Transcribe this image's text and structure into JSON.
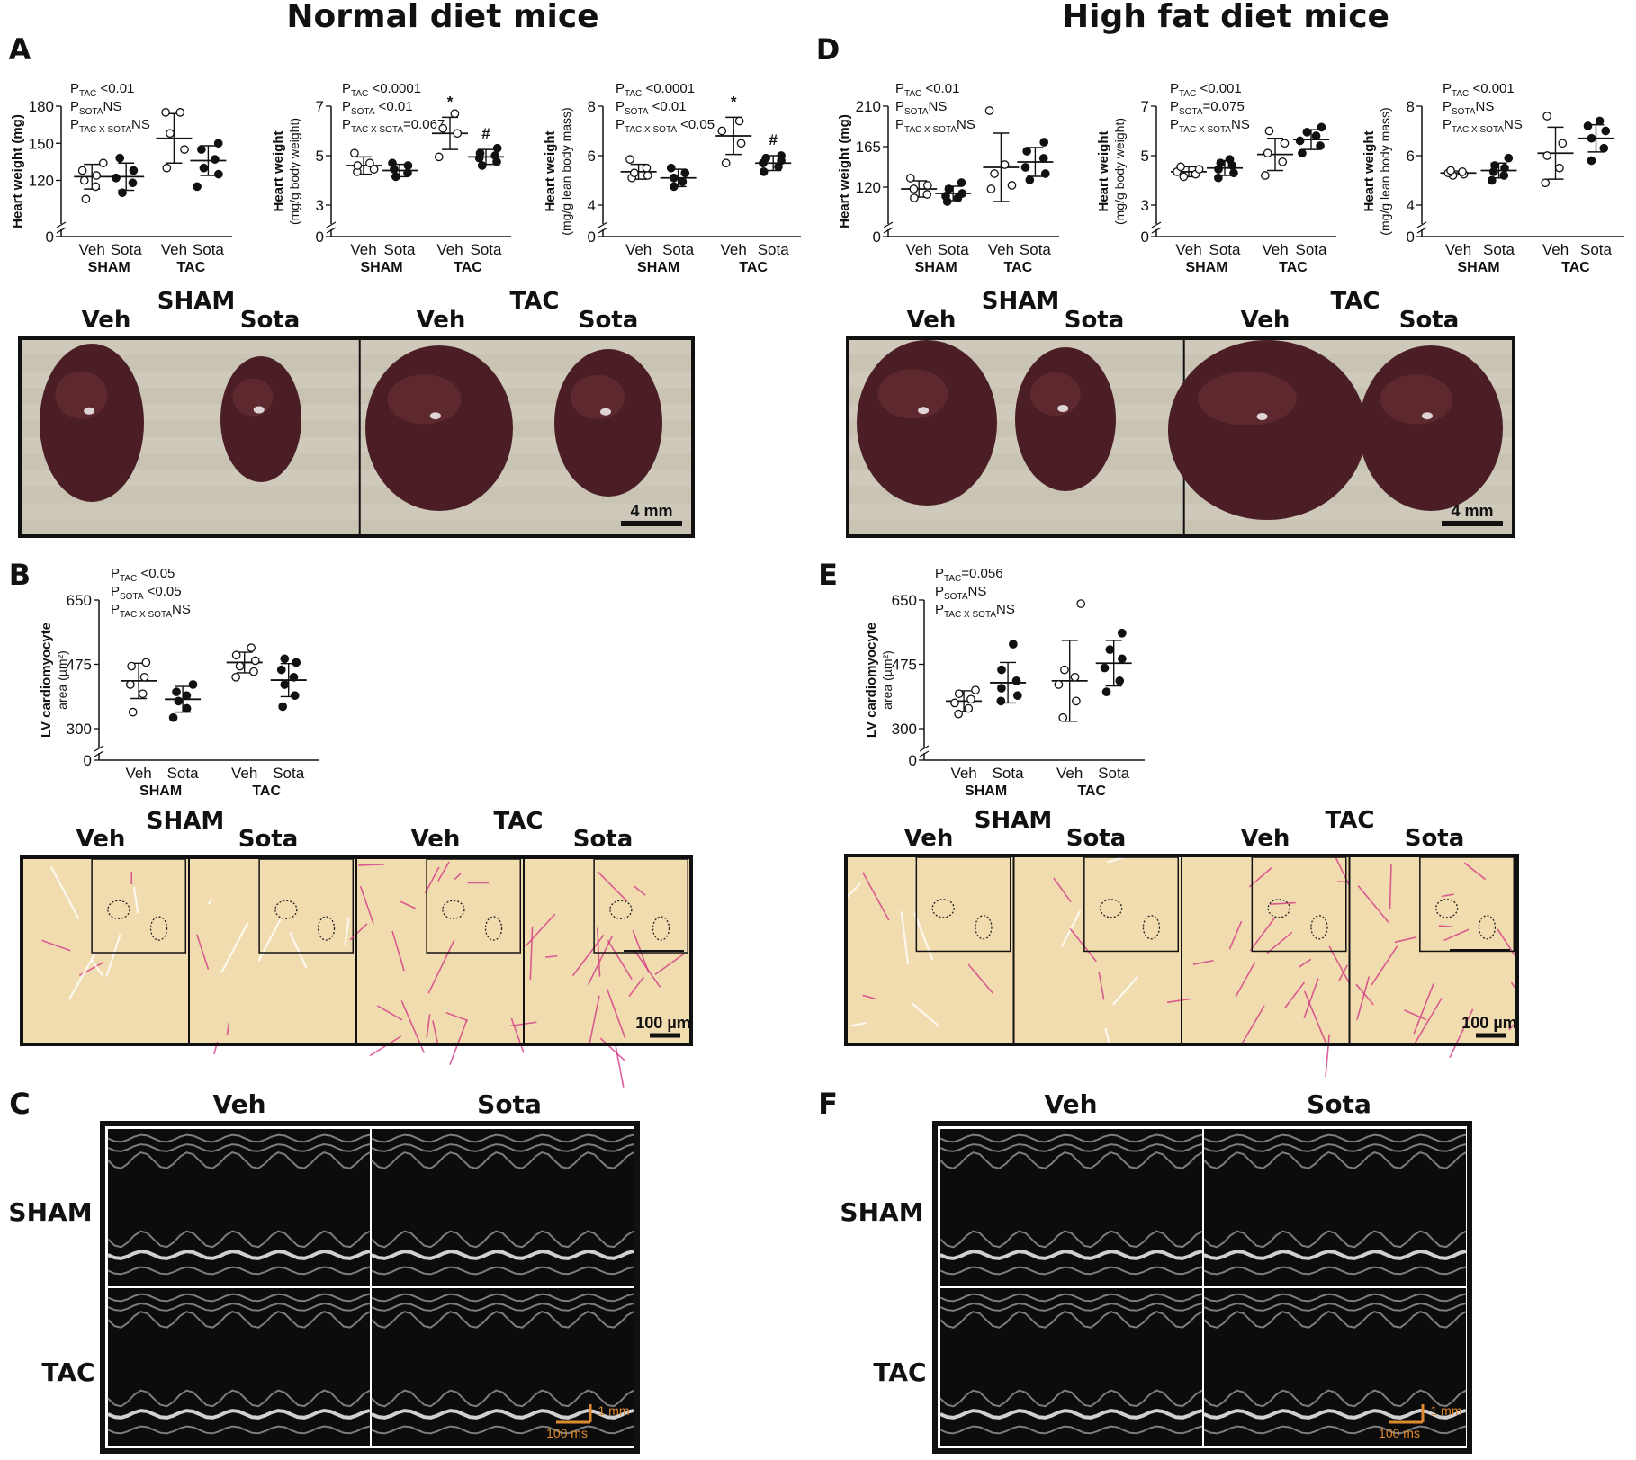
{
  "figure": {
    "col_titles": [
      "Normal diet mice",
      "High fat diet mice"
    ],
    "panel_letters": [
      "A",
      "B",
      "C",
      "D",
      "E",
      "F"
    ],
    "groups": {
      "veh": "Veh",
      "sota": "Sota",
      "sham": "SHAM",
      "tac": "TAC"
    },
    "scale_labels": {
      "photo": "4 mm",
      "histo": "100 µm",
      "echo_v": "1 mm",
      "echo_h": "100 ms"
    },
    "colors": {
      "open_marker": "#ffffff",
      "closed_marker": "#111111",
      "heart": "#4a1e24",
      "photo_bg": "#c9c3b4",
      "stain_bg": "#f1dcb0",
      "stain_pink": "#d43a86",
      "echo_bg": "#0c0c0c",
      "scale_orange": "#e08a30"
    }
  },
  "chart_data": [
    {
      "panel": "A1",
      "type": "scatter",
      "ylabel": "Heart weight (mg)",
      "yticks": [
        0,
        120,
        150,
        180
      ],
      "ylim": [
        100,
        180
      ],
      "axis_break": true,
      "stats": [
        {
          "sym": "P",
          "sub": "TAC",
          "val": " <0.01"
        },
        {
          "sym": "P",
          "sub": "SOTA",
          "val": "NS"
        },
        {
          "sym": "P",
          "sub": "TAC X SOTA",
          "val": "NS"
        }
      ],
      "groups": [
        {
          "x": "Veh",
          "cond": "SHAM",
          "filled": false,
          "mean": 123,
          "sd": 10,
          "points": [
            105,
            115,
            120,
            124,
            128,
            134
          ]
        },
        {
          "x": "Sota",
          "cond": "SHAM",
          "filled": true,
          "mean": 123,
          "sd": 11,
          "points": [
            110,
            118,
            122,
            128,
            138
          ]
        },
        {
          "x": "Veh",
          "cond": "TAC",
          "filled": false,
          "mean": 154,
          "sd": 20,
          "points": [
            130,
            145,
            158,
            175,
            175
          ]
        },
        {
          "x": "Sota",
          "cond": "TAC",
          "filled": true,
          "mean": 136,
          "sd": 12,
          "points": [
            115,
            125,
            130,
            137,
            145,
            150
          ]
        }
      ],
      "markers": []
    },
    {
      "panel": "A2",
      "type": "scatter",
      "ylabel": "Heart weight",
      "ylabel2": "(mg/g body weight)",
      "yticks": [
        0,
        3,
        5,
        7
      ],
      "ylim": [
        3,
        7
      ],
      "axis_break": true,
      "stats": [
        {
          "sym": "P",
          "sub": "TAC",
          "val": " <0.0001"
        },
        {
          "sym": "P",
          "sub": "SOTA",
          "val": " <0.01"
        },
        {
          "sym": "P",
          "sub": "TAC X SOTA",
          "val": "=0.067"
        }
      ],
      "groups": [
        {
          "x": "Veh",
          "cond": "SHAM",
          "filled": false,
          "mean": 4.6,
          "sd": 0.35,
          "points": [
            4.35,
            4.45,
            4.6,
            4.7,
            5.1
          ]
        },
        {
          "x": "Sota",
          "cond": "SHAM",
          "filled": true,
          "mean": 4.4,
          "sd": 0.25,
          "points": [
            4.15,
            4.3,
            4.45,
            4.6,
            4.7
          ]
        },
        {
          "x": "Veh",
          "cond": "TAC",
          "filled": false,
          "mean": 5.9,
          "sd": 0.65,
          "points": [
            4.95,
            5.9,
            6.1,
            6.7
          ]
        },
        {
          "x": "Sota",
          "cond": "TAC",
          "filled": true,
          "mean": 4.95,
          "sd": 0.3,
          "points": [
            4.6,
            4.75,
            4.9,
            5.0,
            5.1,
            5.3
          ]
        }
      ],
      "markers": [
        {
          "cond": "TAC",
          "x": "Veh",
          "text": "*"
        },
        {
          "cond": "TAC",
          "x": "Sota",
          "text": "#"
        }
      ]
    },
    {
      "panel": "A3",
      "type": "scatter",
      "ylabel": "Heart weight",
      "ylabel2": "(mg/g lean body mass)",
      "yticks": [
        0,
        4,
        6,
        8
      ],
      "ylim": [
        4,
        8
      ],
      "axis_break": true,
      "stats": [
        {
          "sym": "P",
          "sub": "TAC",
          "val": " <0.0001"
        },
        {
          "sym": "P",
          "sub": "SOTA",
          "val": " <0.01"
        },
        {
          "sym": "P",
          "sub": "TAC X SOTA",
          "val": " <0.05"
        }
      ],
      "groups": [
        {
          "x": "Veh",
          "cond": "SHAM",
          "filled": false,
          "mean": 5.35,
          "sd": 0.3,
          "points": [
            5.1,
            5.2,
            5.3,
            5.5,
            5.85
          ]
        },
        {
          "x": "Sota",
          "cond": "SHAM",
          "filled": true,
          "mean": 5.1,
          "sd": 0.35,
          "points": [
            4.75,
            4.95,
            5.1,
            5.3,
            5.5
          ]
        },
        {
          "x": "Veh",
          "cond": "TAC",
          "filled": false,
          "mean": 6.8,
          "sd": 0.75,
          "points": [
            5.7,
            6.5,
            7.0,
            7.4
          ]
        },
        {
          "x": "Sota",
          "cond": "TAC",
          "filled": true,
          "mean": 5.7,
          "sd": 0.3,
          "points": [
            5.35,
            5.55,
            5.7,
            5.8,
            5.9,
            6.0
          ]
        }
      ],
      "markers": [
        {
          "cond": "TAC",
          "x": "Veh",
          "text": "*"
        },
        {
          "cond": "TAC",
          "x": "Sota",
          "text": "#"
        }
      ]
    },
    {
      "panel": "B",
      "type": "scatter",
      "ylabel": "LV cardiomyocyte",
      "ylabel2": "area (µm²)",
      "yticks": [
        0,
        300,
        475,
        650
      ],
      "ylim": [
        300,
        650
      ],
      "axis_break": true,
      "stats": [
        {
          "sym": "P",
          "sub": "TAC",
          "val": " <0.05"
        },
        {
          "sym": "P",
          "sub": "SOTA",
          "val": " <0.05"
        },
        {
          "sym": "P",
          "sub": "TAC X SOTA",
          "val": "NS"
        }
      ],
      "groups": [
        {
          "x": "Veh",
          "cond": "SHAM",
          "filled": false,
          "mean": 430,
          "sd": 48,
          "points": [
            345,
            395,
            420,
            440,
            470,
            480
          ]
        },
        {
          "x": "Sota",
          "cond": "SHAM",
          "filled": true,
          "mean": 380,
          "sd": 35,
          "points": [
            330,
            355,
            375,
            390,
            400,
            420
          ]
        },
        {
          "x": "Veh",
          "cond": "TAC",
          "filled": false,
          "mean": 480,
          "sd": 28,
          "points": [
            440,
            455,
            470,
            485,
            500,
            520
          ]
        },
        {
          "x": "Sota",
          "cond": "TAC",
          "filled": true,
          "mean": 432,
          "sd": 45,
          "points": [
            360,
            390,
            420,
            440,
            460,
            480,
            490
          ]
        }
      ],
      "markers": []
    },
    {
      "panel": "D1",
      "type": "scatter",
      "ylabel": "Heart weight (mg)",
      "yticks": [
        0,
        120,
        165,
        210
      ],
      "ylim": [
        100,
        210
      ],
      "axis_break": true,
      "stats": [
        {
          "sym": "P",
          "sub": "TAC",
          "val": " <0.01"
        },
        {
          "sym": "P",
          "sub": "SOTA",
          "val": "NS"
        },
        {
          "sym": "P",
          "sub": "TAC X SOTA",
          "val": "NS"
        }
      ],
      "groups": [
        {
          "x": "Veh",
          "cond": "SHAM",
          "filled": false,
          "mean": 118,
          "sd": 9,
          "points": [
            108,
            112,
            118,
            122,
            130
          ]
        },
        {
          "x": "Sota",
          "cond": "SHAM",
          "filled": true,
          "mean": 113,
          "sd": 8,
          "points": [
            104,
            108,
            110,
            113,
            118,
            125
          ]
        },
        {
          "x": "Veh",
          "cond": "TAC",
          "filled": false,
          "mean": 142,
          "sd": 38,
          "points": [
            118,
            122,
            135,
            145,
            205
          ]
        },
        {
          "x": "Sota",
          "cond": "TAC",
          "filled": true,
          "mean": 148,
          "sd": 16,
          "points": [
            128,
            135,
            142,
            152,
            160,
            170
          ]
        }
      ],
      "markers": []
    },
    {
      "panel": "D2",
      "type": "scatter",
      "ylabel": "Heart weight",
      "ylabel2": "(mg/g body weight)",
      "yticks": [
        0,
        3,
        5,
        7
      ],
      "ylim": [
        3,
        7
      ],
      "axis_break": true,
      "stats": [
        {
          "sym": "P",
          "sub": "TAC",
          "val": " <0.001"
        },
        {
          "sym": "P",
          "sub": "SOTA",
          "val": "=0.075"
        },
        {
          "sym": "P",
          "sub": "TAC X SOTA",
          "val": "NS"
        }
      ],
      "groups": [
        {
          "x": "Veh",
          "cond": "SHAM",
          "filled": false,
          "mean": 4.35,
          "sd": 0.2,
          "points": [
            4.15,
            4.25,
            4.35,
            4.45,
            4.55
          ]
        },
        {
          "x": "Sota",
          "cond": "SHAM",
          "filled": true,
          "mean": 4.5,
          "sd": 0.3,
          "points": [
            4.1,
            4.3,
            4.45,
            4.6,
            4.7,
            4.85
          ]
        },
        {
          "x": "Veh",
          "cond": "TAC",
          "filled": false,
          "mean": 5.05,
          "sd": 0.65,
          "points": [
            4.2,
            4.75,
            5.1,
            5.5,
            6.0
          ]
        },
        {
          "x": "Sota",
          "cond": "TAC",
          "filled": true,
          "mean": 5.65,
          "sd": 0.4,
          "points": [
            5.1,
            5.4,
            5.6,
            5.8,
            5.95,
            6.15
          ]
        }
      ],
      "markers": []
    },
    {
      "panel": "D3",
      "type": "scatter",
      "ylabel": "Heart weight",
      "ylabel2": "(mg/g lean body mass)",
      "yticks": [
        0,
        4,
        6,
        8
      ],
      "ylim": [
        4,
        8
      ],
      "axis_break": true,
      "stats": [
        {
          "sym": "P",
          "sub": "TAC",
          "val": " <0.001"
        },
        {
          "sym": "P",
          "sub": "SOTA",
          "val": "NS"
        },
        {
          "sym": "P",
          "sub": "TAC X SOTA",
          "val": "NS"
        }
      ],
      "groups": [
        {
          "x": "Veh",
          "cond": "SHAM",
          "filled": false,
          "mean": 5.3,
          "sd": 0.08,
          "points": [
            5.2,
            5.25,
            5.3,
            5.35,
            5.4
          ]
        },
        {
          "x": "Sota",
          "cond": "SHAM",
          "filled": true,
          "mean": 5.4,
          "sd": 0.3,
          "points": [
            5.0,
            5.2,
            5.35,
            5.5,
            5.6,
            5.9
          ]
        },
        {
          "x": "Veh",
          "cond": "TAC",
          "filled": false,
          "mean": 6.1,
          "sd": 1.05,
          "points": [
            4.9,
            5.5,
            6.0,
            6.5,
            7.6
          ]
        },
        {
          "x": "Sota",
          "cond": "TAC",
          "filled": true,
          "mean": 6.7,
          "sd": 0.55,
          "points": [
            5.8,
            6.3,
            6.7,
            7.0,
            7.2,
            7.4
          ]
        }
      ],
      "markers": []
    },
    {
      "panel": "E",
      "type": "scatter",
      "ylabel": "LV cardiomyocyte",
      "ylabel2": "area (µm²)",
      "yticks": [
        0,
        300,
        475,
        650
      ],
      "ylim": [
        300,
        650
      ],
      "axis_break": true,
      "stats": [
        {
          "sym": "P",
          "sub": "TAC",
          "val": "=0.056"
        },
        {
          "sym": "P",
          "sub": "SOTA",
          "val": "NS"
        },
        {
          "sym": "P",
          "sub": "TAC X SOTA",
          "val": "NS"
        }
      ],
      "groups": [
        {
          "x": "Veh",
          "cond": "SHAM",
          "filled": false,
          "mean": 375,
          "sd": 28,
          "points": [
            340,
            355,
            370,
            380,
            395,
            405
          ]
        },
        {
          "x": "Sota",
          "cond": "SHAM",
          "filled": true,
          "mean": 425,
          "sd": 55,
          "points": [
            375,
            390,
            410,
            430,
            460,
            530
          ]
        },
        {
          "x": "Veh",
          "cond": "TAC",
          "filled": false,
          "mean": 430,
          "sd": 110,
          "points": [
            330,
            375,
            420,
            440,
            460,
            640
          ]
        },
        {
          "x": "Sota",
          "cond": "TAC",
          "filled": true,
          "mean": 478,
          "sd": 62,
          "points": [
            400,
            430,
            465,
            490,
            515,
            560
          ]
        }
      ],
      "markers": []
    }
  ]
}
